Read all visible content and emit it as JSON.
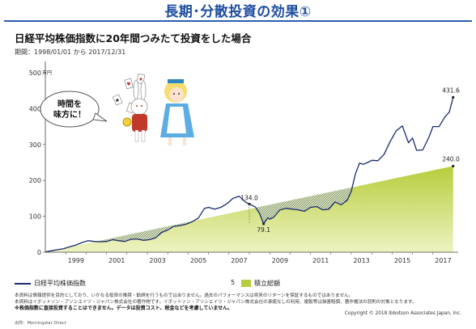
{
  "slide": {
    "title": "長期･分散投資の効果①",
    "subtitle": "日経平均株価指数に20年間つみたて投資をした場合",
    "period": "期間：1998/01/01 から 2017/12/31"
  },
  "illustration": {
    "speech_line1": "時間を",
    "speech_line2": "味方に！"
  },
  "legend": {
    "nikkei": "日経平均株価指数",
    "separator": "5",
    "accumulated": "積立総額"
  },
  "notes": [
    "本資料は情報提供を目的としており、いかなる投資の推奨・勧誘を行うものではありません。過去のパフォーマンスは将来のリターンを保証するものではありません。",
    "本資料はイボットソン・アソシエイツ・ジャパン株式会社の著作物です。イボットソン・アソシエイツ・ジャパン株式会社の承諾なしの利用、複製等は損害賠償、著作権法の罰則の対象となります。",
    "※株価指数に直接投資することはできません。データは投資コスト、税金などを考慮していません。"
  ],
  "copyright": "Copyright © 2018 Ibbotson Associates Japan, Inc.",
  "source": "出所：Morningstar Direct",
  "colors": {
    "title": "#1f4ea1",
    "nikkei_line": "#1a2b6d",
    "accumulated_fill": "#b8cd3c",
    "accumulated_fill_light": "#eef3c2"
  },
  "chart_data": {
    "type": "area",
    "unit_label": "万円",
    "ylim": [
      0,
      500
    ],
    "yticks": [
      0,
      100,
      200,
      300,
      400,
      500
    ],
    "xlim": [
      1998,
      2018
    ],
    "xticks": [
      "1999",
      "2001",
      "2003",
      "2005",
      "2007",
      "2009",
      "2011",
      "2013",
      "2015",
      "2017"
    ],
    "grid": false,
    "legend_position": "bottom",
    "series": [
      {
        "name": "日経平均株価指数",
        "kind": "line",
        "x": [
          1998.0,
          1998.3,
          1998.6,
          1998.9,
          1999.2,
          1999.5,
          1999.8,
          2000.1,
          2000.4,
          2000.7,
          2001.0,
          2001.3,
          2001.6,
          2001.9,
          2002.2,
          2002.5,
          2002.8,
          2003.1,
          2003.4,
          2003.7,
          2004.0,
          2004.3,
          2004.6,
          2004.9,
          2005.2,
          2005.5,
          2005.8,
          2006.0,
          2006.3,
          2006.6,
          2006.9,
          2007.2,
          2007.5,
          2007.8,
          2008.0,
          2008.3,
          2008.5,
          2008.7,
          2008.9,
          2009.0,
          2009.2,
          2009.5,
          2009.8,
          2010.1,
          2010.4,
          2010.7,
          2011.0,
          2011.3,
          2011.6,
          2011.9,
          2012.2,
          2012.5,
          2012.8,
          2013.0,
          2013.2,
          2013.4,
          2013.6,
          2013.8,
          2014.0,
          2014.3,
          2014.6,
          2014.9,
          2015.2,
          2015.5,
          2015.8,
          2016.0,
          2016.2,
          2016.5,
          2016.8,
          2017.0,
          2017.3,
          2017.6,
          2017.8,
          2017.99
        ],
        "values": [
          1,
          4,
          7,
          10,
          15,
          20,
          27,
          32,
          30,
          29,
          30,
          35,
          32,
          30,
          36,
          37,
          33,
          35,
          40,
          55,
          62,
          72,
          74,
          78,
          85,
          95,
          122,
          125,
          120,
          125,
          135,
          150,
          156,
          140,
          134,
          126,
          108,
          79.1,
          96,
          92,
          98,
          118,
          122,
          120,
          118,
          114,
          125,
          127,
          118,
          120,
          140,
          132,
          145,
          170,
          218,
          248,
          245,
          250,
          256,
          255,
          272,
          308,
          338,
          352,
          305,
          318,
          284,
          285,
          320,
          350,
          350,
          378,
          390,
          431.6
        ]
      },
      {
        "name": "積立総額",
        "kind": "area",
        "x": [
          1998,
          2017.99
        ],
        "values": [
          0,
          240.0
        ]
      }
    ],
    "annotations": [
      {
        "x": 2008.0,
        "value": 134.0,
        "text": "134.0"
      },
      {
        "x": 2008.7,
        "value": 79.1,
        "text": "79.1"
      },
      {
        "x": 2017.99,
        "value": 431.6,
        "text": "431.6"
      },
      {
        "x": 2017.99,
        "value": 240.0,
        "text": "240.0"
      }
    ]
  }
}
